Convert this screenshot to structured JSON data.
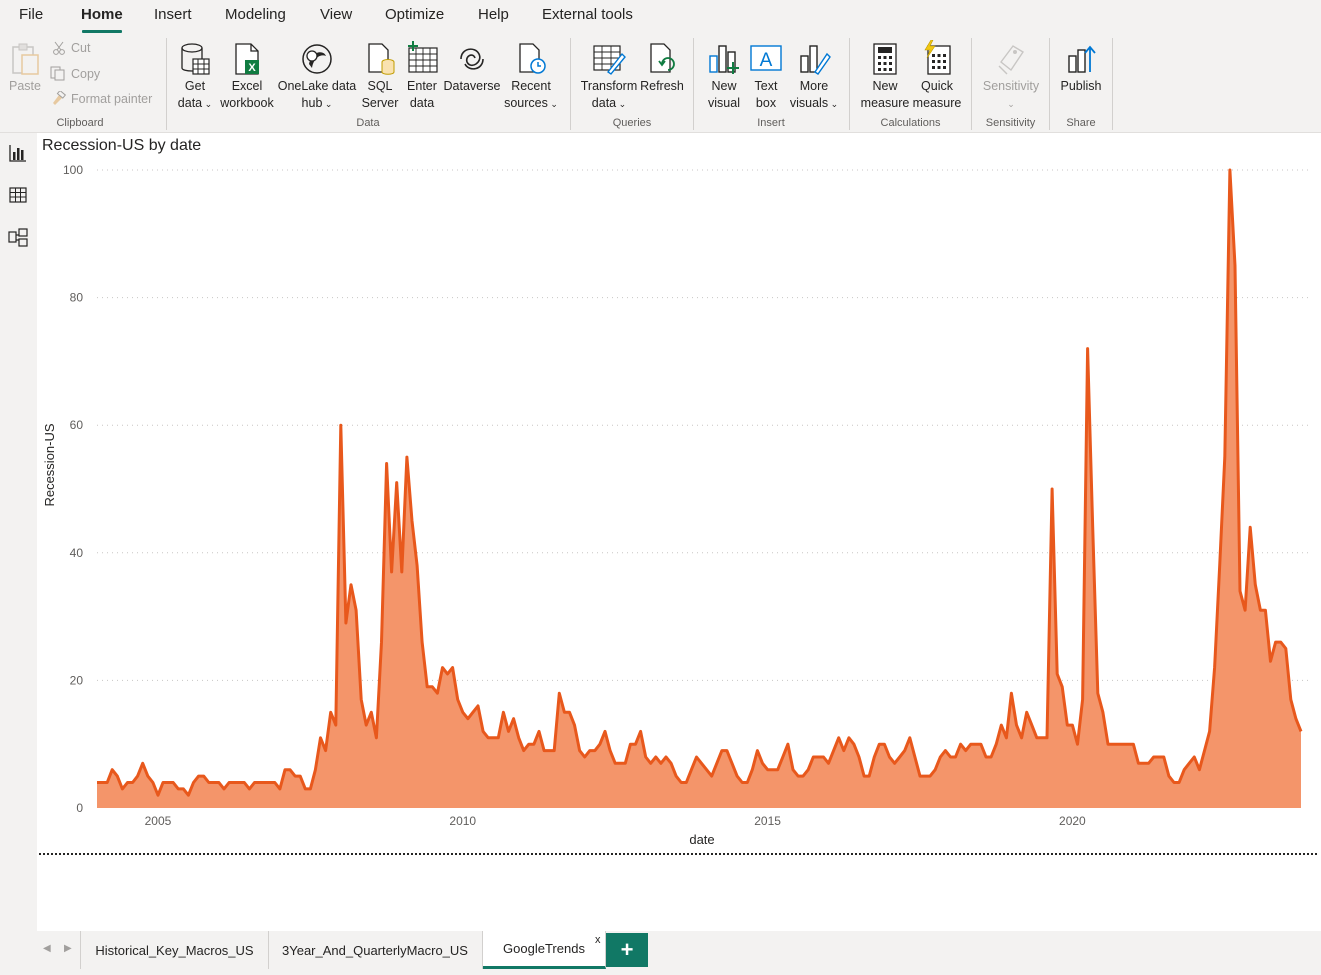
{
  "menu": {
    "items": [
      "File",
      "Home",
      "Insert",
      "Modeling",
      "View",
      "Optimize",
      "Help",
      "External tools"
    ],
    "active": "Home"
  },
  "ribbon": {
    "clipboard": {
      "paste": "Paste",
      "cut": "Cut",
      "copy": "Copy",
      "format_painter": "Format painter",
      "group": "Clipboard"
    },
    "data": {
      "get_data": [
        "Get",
        "data"
      ],
      "excel": [
        "Excel",
        "workbook"
      ],
      "onelake": [
        "OneLake data",
        "hub"
      ],
      "sql": [
        "SQL",
        "Server"
      ],
      "enter": [
        "Enter",
        "data"
      ],
      "dataverse": "Dataverse",
      "recent": [
        "Recent",
        "sources"
      ],
      "group": "Data"
    },
    "queries": {
      "transform": [
        "Transform",
        "data"
      ],
      "refresh": "Refresh",
      "group": "Queries"
    },
    "insert": {
      "new_visual": [
        "New",
        "visual"
      ],
      "text_box": [
        "Text",
        "box"
      ],
      "more_visuals": [
        "More",
        "visuals"
      ],
      "group": "Insert"
    },
    "calculations": {
      "new_measure": [
        "New",
        "measure"
      ],
      "quick_measure": [
        "Quick",
        "measure"
      ],
      "group": "Calculations"
    },
    "sensitivity": {
      "label": "Sensitivity",
      "group": "Sensitivity"
    },
    "share": {
      "publish": "Publish",
      "group": "Share"
    }
  },
  "visual": {
    "title": "Recession-US by date"
  },
  "colors": {
    "accent": "#117865",
    "line": "#e8581c",
    "area": "#f4956a"
  },
  "chart_data": {
    "type": "area",
    "xlabel": "date",
    "ylabel": "Recession-US",
    "ylim": [
      0,
      100
    ],
    "yticks": [
      0,
      20,
      40,
      60,
      80,
      100
    ],
    "xticks": [
      "2005",
      "2010",
      "2015",
      "2020"
    ],
    "xlim": [
      "2004-01",
      "2023-10"
    ],
    "grid": true,
    "series": [
      {
        "values": [
          4,
          4,
          4,
          6,
          5,
          3,
          4,
          4,
          5,
          7,
          5,
          4,
          2,
          4,
          4,
          4,
          3,
          3,
          2,
          4,
          5,
          5,
          4,
          4,
          4,
          3,
          4,
          4,
          4,
          4,
          3,
          4,
          4,
          4,
          4,
          4,
          3,
          6,
          6,
          5,
          5,
          3,
          3,
          6,
          11,
          9,
          15,
          13,
          60,
          29,
          35,
          31,
          17,
          13,
          15,
          11,
          26,
          54,
          37,
          51,
          37,
          55,
          45,
          38,
          26,
          19,
          19,
          18,
          22,
          21,
          22,
          17,
          15,
          14,
          15,
          16,
          12,
          11,
          11,
          11,
          15,
          12,
          14,
          11,
          9,
          10,
          10,
          12,
          9,
          9,
          9,
          18,
          15,
          15,
          13,
          9,
          8,
          9,
          9,
          10,
          12,
          9,
          7,
          7,
          7,
          10,
          10,
          12,
          8,
          7,
          8,
          7,
          8,
          7,
          5,
          4,
          4,
          6,
          8,
          7,
          6,
          5,
          7,
          9,
          9,
          7,
          5,
          4,
          4,
          6,
          9,
          7,
          6,
          6,
          6,
          8,
          10,
          6,
          5,
          5,
          6,
          8,
          8,
          8,
          7,
          9,
          11,
          9,
          11,
          10,
          8,
          5,
          5,
          8,
          10,
          10,
          8,
          7,
          8,
          9,
          11,
          8,
          5,
          5,
          5,
          6,
          8,
          9,
          8,
          8,
          10,
          9,
          10,
          10,
          10,
          8,
          8,
          10,
          13,
          11,
          18,
          13,
          11,
          15,
          13,
          11,
          11,
          11,
          50,
          21,
          19,
          13,
          13,
          10,
          17,
          72,
          44,
          18,
          15,
          10,
          10,
          10,
          10,
          10,
          10,
          7,
          7,
          7,
          8,
          8,
          8,
          5,
          4,
          4,
          6,
          7,
          8,
          6,
          9,
          12,
          22,
          38,
          55,
          100,
          85,
          34,
          31,
          44,
          35,
          31,
          31,
          23,
          26,
          26,
          25,
          17,
          14,
          12
        ]
      }
    ]
  },
  "tabs": {
    "pages": [
      "Historical_Key_Macros_US",
      "3Year_And_QuarterlyMacro_US",
      "GoogleTrends"
    ],
    "active": "GoogleTrends",
    "close": "x",
    "add": "+"
  }
}
